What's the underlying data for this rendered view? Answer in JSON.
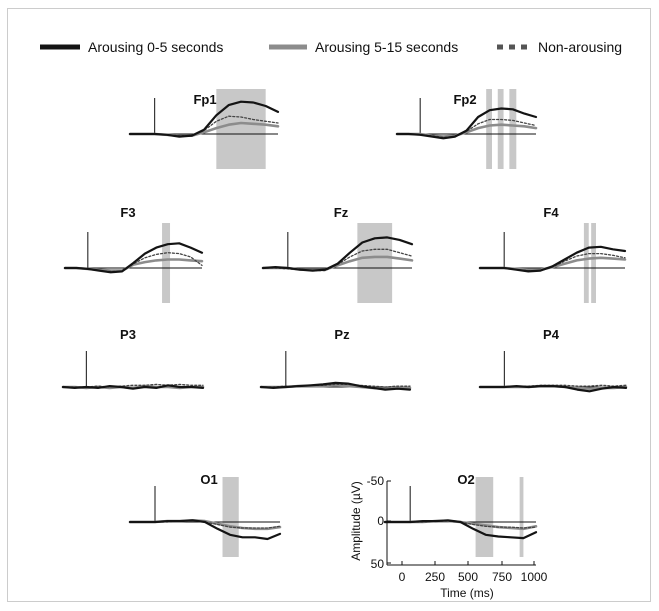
{
  "chart_data": {
    "type": "line",
    "legend": {
      "placement": "top",
      "entries": [
        {
          "label": "Arousing 0-5 seconds",
          "color": "#141414",
          "style": "solid-thick"
        },
        {
          "label": "Arousing 5-15 seconds",
          "color": "#8c8c8c",
          "style": "solid-thick"
        },
        {
          "label": "Non-arousing",
          "color": "#555555",
          "style": "dotted"
        }
      ]
    },
    "x": [
      -200,
      -100,
      0,
      100,
      200,
      300,
      400,
      500,
      600,
      700,
      800,
      900,
      1000
    ],
    "x_ticks": [
      "0",
      "250",
      "500",
      "750",
      "1000"
    ],
    "x_tick_values": [
      0,
      250,
      500,
      750,
      1000
    ],
    "xlabel": "Time (ms)",
    "xlim": [
      -200,
      1000
    ],
    "y_ticks": [
      "-50",
      "0",
      "50"
    ],
    "y_tick_values": [
      -50,
      0,
      50
    ],
    "ylabel": "Amplitude (µV)",
    "ylim": [
      50,
      -50
    ],
    "stimulus_onset": 0,
    "panels": [
      {
        "title": "Fp1",
        "series": [
          {
            "name": "Arousing 0-5 seconds",
            "values": [
              0,
              0,
              0,
              1,
              3,
              2,
              -5,
              -22,
              -34,
              -38,
              -37,
              -33,
              -26
            ]
          },
          {
            "name": "Arousing 5-15 seconds",
            "values": [
              0,
              0,
              0,
              1,
              2,
              2,
              -2,
              -7,
              -11,
              -13,
              -12,
              -11,
              -9
            ]
          },
          {
            "name": "Non-arousing",
            "values": [
              0,
              0,
              0,
              1,
              2,
              2,
              -4,
              -15,
              -21,
              -20,
              -17,
              -15,
              -13
            ]
          }
        ],
        "shaded": [
          [
            500,
            900
          ]
        ]
      },
      {
        "title": "Fp2",
        "series": [
          {
            "name": "Arousing 0-5 seconds",
            "values": [
              0,
              0,
              1,
              3,
              5,
              3,
              -4,
              -20,
              -28,
              -30,
              -29,
              -24,
              -20
            ]
          },
          {
            "name": "Arousing 5-15 seconds",
            "values": [
              0,
              0,
              0,
              2,
              3,
              2,
              -2,
              -7,
              -10,
              -11,
              -10,
              -9,
              -7
            ]
          },
          {
            "name": "Non-arousing",
            "values": [
              0,
              0,
              1,
              2,
              4,
              3,
              -3,
              -12,
              -17,
              -17,
              -16,
              -13,
              -10
            ]
          }
        ],
        "shaded": [
          [
            570,
            620
          ],
          [
            670,
            720
          ],
          [
            770,
            830
          ]
        ]
      },
      {
        "title": "F3",
        "series": [
          {
            "name": "Arousing 0-5 seconds",
            "values": [
              0,
              0,
              1,
              3,
              5,
              4,
              -6,
              -17,
              -24,
              -28,
              -29,
              -24,
              -18
            ]
          },
          {
            "name": "Arousing 5-15 seconds",
            "values": [
              0,
              0,
              1,
              2,
              3,
              3,
              -4,
              -7,
              -9,
              -10,
              -10,
              -9,
              -8
            ]
          },
          {
            "name": "Non-arousing",
            "values": [
              0,
              0,
              1,
              3,
              4,
              4,
              -5,
              -12,
              -16,
              -18,
              -17,
              -13,
              -3
            ]
          }
        ],
        "shaded": [
          [
            650,
            720
          ]
        ]
      },
      {
        "title": "Fz",
        "series": [
          {
            "name": "Arousing 0-5 seconds",
            "values": [
              0,
              -1,
              0,
              2,
              3,
              2,
              -5,
              -18,
              -30,
              -35,
              -36,
              -33,
              -28
            ]
          },
          {
            "name": "Arousing 5-15 seconds",
            "values": [
              0,
              0,
              0,
              2,
              2,
              2,
              -3,
              -8,
              -12,
              -13,
              -13,
              -11,
              -9
            ]
          },
          {
            "name": "Non-arousing",
            "values": [
              0,
              0,
              1,
              2,
              3,
              3,
              -4,
              -13,
              -20,
              -22,
              -22,
              -18,
              -14
            ]
          }
        ],
        "shaded": [
          [
            560,
            840
          ]
        ]
      },
      {
        "title": "F4",
        "series": [
          {
            "name": "Arousing 0-5 seconds",
            "values": [
              0,
              0,
              0,
              2,
              4,
              3,
              -2,
              -10,
              -18,
              -24,
              -25,
              -22,
              -20
            ]
          },
          {
            "name": "Arousing 5-15 seconds",
            "values": [
              0,
              0,
              0,
              1,
              2,
              2,
              -1,
              -5,
              -9,
              -11,
              -12,
              -11,
              -10
            ]
          },
          {
            "name": "Non-arousing",
            "values": [
              0,
              0,
              0,
              2,
              3,
              3,
              -1,
              -8,
              -14,
              -17,
              -17,
              -15,
              -12
            ]
          }
        ],
        "shaded": [
          [
            660,
            700
          ],
          [
            720,
            760
          ]
        ]
      },
      {
        "title": "P3",
        "series": [
          {
            "name": "Arousing 0-5 seconds",
            "values": [
              0,
              1,
              0,
              1,
              -1,
              0,
              2,
              0,
              1,
              -2,
              0,
              0,
              1
            ]
          },
          {
            "name": "Arousing 5-15 seconds",
            "values": [
              0,
              0,
              1,
              0,
              1,
              0,
              1,
              -1,
              0,
              0,
              1,
              0,
              0
            ]
          },
          {
            "name": "Non-arousing",
            "values": [
              0,
              0,
              0,
              -1,
              0,
              -1,
              -2,
              -2,
              -3,
              -2,
              -3,
              -2,
              -2
            ]
          }
        ],
        "shaded": []
      },
      {
        "title": "Pz",
        "series": [
          {
            "name": "Arousing 0-5 seconds",
            "values": [
              0,
              1,
              0,
              -1,
              -2,
              -3,
              -5,
              -4,
              -1,
              1,
              3,
              2,
              3
            ]
          },
          {
            "name": "Arousing 5-15 seconds",
            "values": [
              0,
              0,
              0,
              -1,
              -1,
              -1,
              -2,
              -1,
              0,
              1,
              2,
              1,
              1
            ]
          },
          {
            "name": "Non-arousing",
            "values": [
              0,
              0,
              -1,
              -1,
              -2,
              -2,
              -3,
              -3,
              -2,
              -1,
              0,
              -1,
              -1
            ]
          }
        ],
        "shaded": []
      },
      {
        "title": "P4",
        "series": [
          {
            "name": "Arousing 0-5 seconds",
            "values": [
              0,
              0,
              0,
              -1,
              0,
              -1,
              -1,
              0,
              3,
              5,
              2,
              0,
              1
            ]
          },
          {
            "name": "Arousing 5-15 seconds",
            "values": [
              0,
              0,
              0,
              0,
              0,
              -1,
              -1,
              0,
              1,
              2,
              1,
              1,
              0
            ]
          },
          {
            "name": "Non-arousing",
            "values": [
              0,
              0,
              0,
              -1,
              -1,
              -2,
              -2,
              -2,
              -1,
              -1,
              -2,
              -1,
              -2
            ]
          }
        ],
        "shaded": []
      },
      {
        "title": "O1",
        "series": [
          {
            "name": "Arousing 0-5 seconds",
            "values": [
              0,
              0,
              0,
              -1,
              -1,
              -2,
              0,
              8,
              15,
              18,
              18,
              20,
              14
            ]
          },
          {
            "name": "Arousing 5-15 seconds",
            "values": [
              0,
              0,
              0,
              -1,
              -1,
              -2,
              -1,
              2,
              5,
              7,
              8,
              8,
              6
            ]
          },
          {
            "name": "Non-arousing",
            "values": [
              0,
              0,
              0,
              0,
              -1,
              -1,
              0,
              3,
              6,
              7,
              7,
              7,
              5
            ]
          }
        ],
        "shaded": [
          [
            540,
            670
          ]
        ]
      },
      {
        "title": "O2",
        "series": [
          {
            "name": "Arousing 0-5 seconds",
            "values": [
              0,
              0,
              0,
              -1,
              -1,
              -2,
              0,
              8,
              15,
              17,
              18,
              19,
              12
            ]
          },
          {
            "name": "Arousing 5-15 seconds",
            "values": [
              0,
              0,
              0,
              0,
              -1,
              -1,
              0,
              2,
              4,
              6,
              7,
              8,
              5
            ]
          },
          {
            "name": "Non-arousing",
            "values": [
              0,
              0,
              0,
              0,
              -1,
              -1,
              0,
              3,
              5,
              6,
              6,
              7,
              6
            ]
          }
        ],
        "shaded": [
          [
            520,
            660
          ],
          [
            870,
            900
          ]
        ]
      }
    ]
  }
}
